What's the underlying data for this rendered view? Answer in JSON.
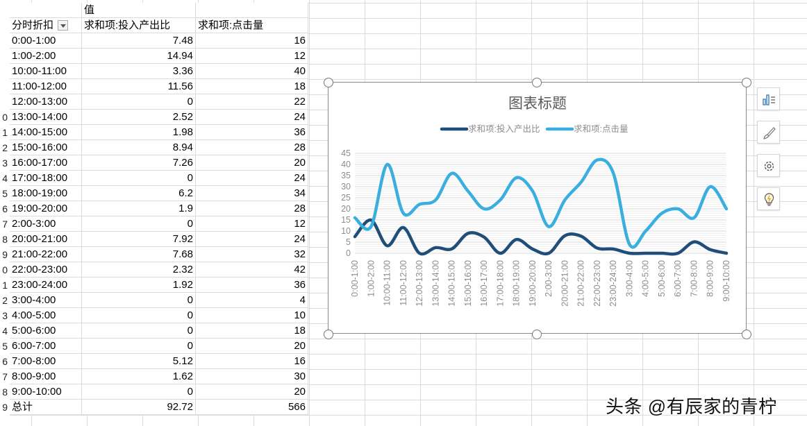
{
  "sheet": {
    "values_header": "值",
    "col_headers": [
      "分时折扣",
      "求和项:投入产出比",
      "求和项:点击量"
    ],
    "rows": [
      [
        "0:00-1:00",
        "7.48",
        "16"
      ],
      [
        "1:00-2:00",
        "14.94",
        "12"
      ],
      [
        "10:00-11:00",
        "3.36",
        "40"
      ],
      [
        "11:00-12:00",
        "11.56",
        "18"
      ],
      [
        "12:00-13:00",
        "0",
        "22"
      ],
      [
        "13:00-14:00",
        "2.52",
        "24"
      ],
      [
        "14:00-15:00",
        "1.98",
        "36"
      ],
      [
        "15:00-16:00",
        "8.94",
        "28"
      ],
      [
        "16:00-17:00",
        "7.26",
        "20"
      ],
      [
        "17:00-18:00",
        "0",
        "24"
      ],
      [
        "18:00-19:00",
        "6.2",
        "34"
      ],
      [
        "19:00-20:00",
        "1.9",
        "28"
      ],
      [
        "2:00-3:00",
        "0",
        "12"
      ],
      [
        "20:00-21:00",
        "7.92",
        "24"
      ],
      [
        "21:00-22:00",
        "7.68",
        "32"
      ],
      [
        "22:00-23:00",
        "2.32",
        "42"
      ],
      [
        "23:00-24:00",
        "1.92",
        "36"
      ],
      [
        "3:00-4:00",
        "0",
        "4"
      ],
      [
        "4:00-5:00",
        "0",
        "10"
      ],
      [
        "5:00-6:00",
        "0",
        "18"
      ],
      [
        "6:00-7:00",
        "0",
        "20"
      ],
      [
        "7:00-8:00",
        "5.12",
        "16"
      ],
      [
        "8:00-9:00",
        "1.62",
        "30"
      ],
      [
        "9:00-10:00",
        "0",
        "20"
      ]
    ],
    "total": [
      "总计",
      "92.72",
      "566"
    ],
    "row_numbers": [
      "0",
      "1",
      "2",
      "3",
      "4",
      "5",
      "6",
      "7",
      "8",
      "9",
      "0",
      "1",
      "2",
      "3",
      "4",
      "5",
      "6",
      "7",
      "8",
      "9"
    ]
  },
  "chart_data": {
    "type": "line",
    "title": "图表标题",
    "categories": [
      "0:00-1:00",
      "1:00-2:00",
      "10:00-11:00",
      "11:00-12:00",
      "12:00-13:00",
      "13:00-14:00",
      "14:00-15:00",
      "15:00-16:00",
      "16:00-17:00",
      "17:00-18:00",
      "18:00-19:00",
      "19:00-20:00",
      "2:00-3:00",
      "20:00-21:00",
      "21:00-22:00",
      "22:00-23:00",
      "23:00-24:00",
      "3:00-4:00",
      "4:00-5:00",
      "5:00-6:00",
      "6:00-7:00",
      "7:00-8:00",
      "8:00-9:00",
      "9:00-10:00"
    ],
    "series": [
      {
        "name": "求和项:投入产出比",
        "color": "#1f4e79",
        "values": [
          7.48,
          14.94,
          3.36,
          11.56,
          0,
          2.52,
          1.98,
          8.94,
          7.26,
          0,
          6.2,
          1.9,
          0,
          7.92,
          7.68,
          2.32,
          1.92,
          0,
          0,
          0,
          0,
          5.12,
          1.62,
          0
        ]
      },
      {
        "name": "求和项:点击量",
        "color": "#3baee0",
        "values": [
          16,
          12,
          40,
          18,
          22,
          24,
          36,
          28,
          20,
          24,
          34,
          28,
          12,
          24,
          32,
          42,
          36,
          4,
          10,
          18,
          20,
          16,
          30,
          20
        ]
      }
    ],
    "yticks": [
      "0",
      "5",
      "10",
      "15",
      "20",
      "25",
      "30",
      "35",
      "40",
      "45"
    ],
    "ylim": [
      0,
      45
    ],
    "legend": "top",
    "grid": true,
    "smooth": true
  },
  "side_buttons": [
    "chart-elements-icon",
    "chart-styles-icon",
    "chart-filters-icon",
    "idea-bulb-icon"
  ],
  "watermark": "头条 @有辰家的青柠"
}
